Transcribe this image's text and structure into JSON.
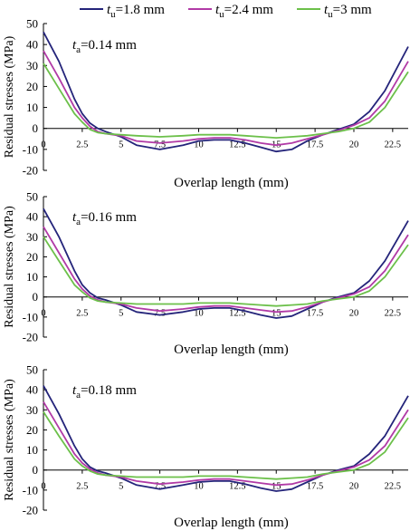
{
  "colors": {
    "series_1": "#24247a",
    "series_2": "#b13aa6",
    "series_3": "#6cc04a"
  },
  "legend": [
    {
      "var": "t",
      "sub": "u",
      "value": "=1.8 mm",
      "color": "#24247a"
    },
    {
      "var": "t",
      "sub": "u",
      "value": "=2.4 mm",
      "color": "#b13aa6"
    },
    {
      "var": "t",
      "sub": "u",
      "value": "=3 mm",
      "color": "#6cc04a"
    }
  ],
  "chart_data": [
    {
      "type": "line",
      "annotation": {
        "var": "t",
        "sub": "a",
        "value": "=0.14 mm"
      },
      "xlabel": "Overlap length (mm)",
      "ylabel": "Residual stresses (MPa)",
      "xlim": [
        0,
        23.5
      ],
      "ylim": [
        -20,
        50
      ],
      "xticks": [
        0,
        2.5,
        5,
        7.5,
        10,
        12.5,
        15,
        17.5,
        20,
        22.5
      ],
      "xtick_labels": [
        "0",
        "2.5",
        "5",
        "7.5",
        "10",
        "12.5",
        "15",
        "17.5",
        "20",
        "22.5"
      ],
      "yticks": [
        -20,
        -10,
        0,
        10,
        20,
        30,
        40,
        50
      ],
      "ytick_labels": [
        "-20",
        "-10",
        "0",
        "10",
        "20",
        "30",
        "40",
        "50"
      ],
      "series": [
        {
          "name": "tu=1.8 mm",
          "x": [
            0,
            1,
            2,
            2.5,
            3,
            3.5,
            4,
            5,
            6,
            7.5,
            9,
            10,
            11,
            12,
            13,
            14,
            15,
            16,
            17,
            18,
            19,
            20,
            21,
            22,
            23.5
          ],
          "y": [
            46,
            32,
            14,
            7,
            2.5,
            0,
            -1.5,
            -4,
            -8,
            -10,
            -8,
            -6,
            -5.5,
            -5.5,
            -7,
            -9,
            -11,
            -10,
            -6,
            -3,
            -0.5,
            2,
            8,
            18,
            39
          ]
        },
        {
          "name": "tu=2.4 mm",
          "x": [
            0,
            1,
            2,
            2.5,
            3,
            3.5,
            4,
            5,
            6,
            7.5,
            9,
            10,
            11,
            12,
            13,
            14,
            15,
            16,
            17,
            18,
            19,
            20,
            21,
            22,
            23.5
          ],
          "y": [
            37,
            24,
            10,
            5,
            1,
            -1.5,
            -2.5,
            -3.5,
            -6,
            -7,
            -6,
            -5,
            -4.5,
            -4.5,
            -5.5,
            -7,
            -8,
            -7,
            -5,
            -3,
            -1,
            1.5,
            5,
            13,
            32
          ]
        },
        {
          "name": "tu=3 mm",
          "x": [
            0,
            1,
            2,
            2.5,
            3,
            3.5,
            4,
            5,
            6,
            7.5,
            9,
            10,
            11,
            12,
            13,
            14,
            15,
            16,
            17,
            18,
            19,
            20,
            21,
            22,
            23.5
          ],
          "y": [
            31,
            19,
            7,
            3,
            -0.5,
            -2,
            -2.5,
            -3,
            -3.5,
            -4,
            -3.5,
            -3,
            -3,
            -3,
            -3.5,
            -4,
            -4.5,
            -4,
            -3.5,
            -2.5,
            -1.5,
            0,
            3,
            10,
            27
          ]
        }
      ]
    },
    {
      "type": "line",
      "annotation": {
        "var": "t",
        "sub": "a",
        "value": "=0.16 mm"
      },
      "xlabel": "Overlap length (mm)",
      "ylabel": "Residual stresses (MPa)",
      "xlim": [
        0,
        23.5
      ],
      "ylim": [
        -20,
        50
      ],
      "xticks": [
        0,
        2.5,
        5,
        7.5,
        10,
        12.5,
        15,
        17.5,
        20,
        22.5
      ],
      "xtick_labels": [
        "0",
        "2.5",
        "5",
        "7.5",
        "10",
        "12.5",
        "15",
        "17.5",
        "20",
        "22.5"
      ],
      "yticks": [
        -20,
        -10,
        0,
        10,
        20,
        30,
        40,
        50
      ],
      "ytick_labels": [
        "-20",
        "-10",
        "0",
        "10",
        "20",
        "30",
        "40",
        "50"
      ],
      "series": [
        {
          "name": "tu=1.8 mm",
          "x": [
            0,
            1,
            2,
            2.5,
            3,
            3.5,
            4,
            5,
            6,
            7.5,
            9,
            10,
            11,
            12,
            13,
            14,
            15,
            16,
            17,
            18,
            19,
            20,
            21,
            22,
            23.5
          ],
          "y": [
            44,
            30,
            13,
            6,
            2,
            -0.5,
            -1.5,
            -4,
            -7.5,
            -9,
            -7.5,
            -6,
            -5.5,
            -5.5,
            -7,
            -9,
            -10.5,
            -9.5,
            -6,
            -2.5,
            0,
            2,
            8,
            18,
            38
          ]
        },
        {
          "name": "tu=2.4 mm",
          "x": [
            0,
            1,
            2,
            2.5,
            3,
            3.5,
            4,
            5,
            6,
            7.5,
            9,
            10,
            11,
            12,
            13,
            14,
            15,
            16,
            17,
            18,
            19,
            20,
            21,
            22,
            23.5
          ],
          "y": [
            35,
            22,
            9,
            4,
            0.5,
            -1.5,
            -2.5,
            -3.5,
            -5.5,
            -7,
            -6,
            -5,
            -4.5,
            -4.5,
            -5.5,
            -6.5,
            -7.5,
            -7,
            -5,
            -2.5,
            -0.5,
            1.5,
            5,
            13,
            31
          ]
        },
        {
          "name": "tu=3 mm",
          "x": [
            0,
            1,
            2,
            2.5,
            3,
            3.5,
            4,
            5,
            6,
            7.5,
            9,
            10,
            11,
            12,
            13,
            14,
            15,
            16,
            17,
            18,
            19,
            20,
            21,
            22,
            23.5
          ],
          "y": [
            30,
            18,
            6,
            2.5,
            -0.5,
            -2,
            -2.5,
            -3,
            -3.5,
            -3.5,
            -3.5,
            -3,
            -3,
            -3,
            -3.5,
            -4,
            -4.5,
            -4,
            -3.5,
            -2,
            -1,
            0,
            3,
            10,
            26
          ]
        }
      ]
    },
    {
      "type": "line",
      "annotation": {
        "var": "t",
        "sub": "a",
        "value": "=0.18 mm"
      },
      "xlabel": "Overlap length (mm)",
      "ylabel": "Residual stresses (MPa)",
      "xlim": [
        0,
        23.5
      ],
      "ylim": [
        -20,
        50
      ],
      "xticks": [
        0,
        2.5,
        5,
        7.5,
        10,
        12.5,
        15,
        17.5,
        20,
        22.5
      ],
      "xtick_labels": [
        "0",
        "2.5",
        "5",
        "7.5",
        "10",
        "12.5",
        "15",
        "17.5",
        "20",
        "22.5"
      ],
      "yticks": [
        -20,
        -10,
        0,
        10,
        20,
        30,
        40,
        50
      ],
      "ytick_labels": [
        "-20",
        "-10",
        "0",
        "10",
        "20",
        "30",
        "40",
        "50"
      ],
      "series": [
        {
          "name": "tu=1.8 mm",
          "x": [
            0,
            1,
            2,
            2.5,
            3,
            3.5,
            4,
            5,
            6,
            7.5,
            9,
            10,
            11,
            12,
            13,
            14,
            15,
            16,
            17,
            18,
            19,
            20,
            21,
            22,
            23.5
          ],
          "y": [
            42,
            28,
            12,
            5.5,
            1.5,
            -0.5,
            -1.5,
            -4,
            -7.5,
            -9.5,
            -7.5,
            -6,
            -5.5,
            -5.5,
            -7,
            -9,
            -10.5,
            -9.5,
            -6,
            -2.5,
            0,
            2,
            8,
            17,
            37
          ]
        },
        {
          "name": "tu=2.4 mm",
          "x": [
            0,
            1,
            2,
            2.5,
            3,
            3.5,
            4,
            5,
            6,
            7.5,
            9,
            10,
            11,
            12,
            13,
            14,
            15,
            16,
            17,
            18,
            19,
            20,
            21,
            22,
            23.5
          ],
          "y": [
            34,
            21,
            8,
            3.5,
            0.5,
            -1.5,
            -2.5,
            -3.5,
            -5.5,
            -7,
            -6,
            -5,
            -4.5,
            -4.5,
            -5.5,
            -6.5,
            -7.5,
            -7,
            -5,
            -2.5,
            -0.5,
            1.5,
            5,
            12,
            30
          ]
        },
        {
          "name": "tu=3 mm",
          "x": [
            0,
            1,
            2,
            2.5,
            3,
            3.5,
            4,
            5,
            6,
            7.5,
            9,
            10,
            11,
            12,
            13,
            14,
            15,
            16,
            17,
            18,
            19,
            20,
            21,
            22,
            23.5
          ],
          "y": [
            29,
            17,
            5.5,
            2,
            -0.5,
            -2,
            -2.5,
            -3,
            -3.5,
            -3.5,
            -3.5,
            -3,
            -3,
            -3,
            -3.5,
            -4,
            -4.5,
            -4,
            -3.5,
            -2,
            -1,
            0,
            3,
            9,
            26
          ]
        }
      ]
    }
  ]
}
